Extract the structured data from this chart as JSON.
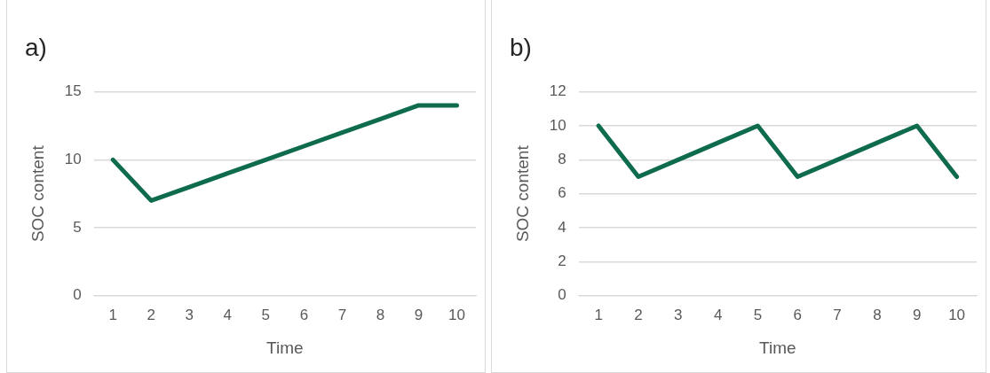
{
  "chart_data": [
    {
      "type": "line",
      "title": "a)",
      "xlabel": "Time",
      "ylabel": "SOC content",
      "categories": [
        "1",
        "2",
        "3",
        "4",
        "5",
        "6",
        "7",
        "8",
        "9",
        "10"
      ],
      "series": [
        {
          "color": "#0e6b4d",
          "values": [
            10,
            7,
            8,
            9,
            10,
            11,
            12,
            13,
            14,
            14
          ]
        }
      ],
      "ylim": [
        0,
        15
      ],
      "yticks": [
        0,
        5,
        10,
        15
      ],
      "grid": "y",
      "legend": false,
      "marker": "none",
      "line_style": "solid"
    },
    {
      "type": "line",
      "title": "b)",
      "xlabel": "Time",
      "ylabel": "SOC content",
      "categories": [
        "1",
        "2",
        "3",
        "4",
        "5",
        "6",
        "7",
        "8",
        "9",
        "10"
      ],
      "series": [
        {
          "color": "#0e6b4d",
          "values": [
            10,
            7,
            8,
            9,
            10,
            7,
            8,
            9,
            10,
            7
          ]
        }
      ],
      "ylim": [
        0,
        12
      ],
      "yticks": [
        0,
        2,
        4,
        6,
        8,
        10,
        12
      ],
      "grid": "y",
      "legend": false,
      "marker": "none",
      "line_style": "solid"
    }
  ]
}
